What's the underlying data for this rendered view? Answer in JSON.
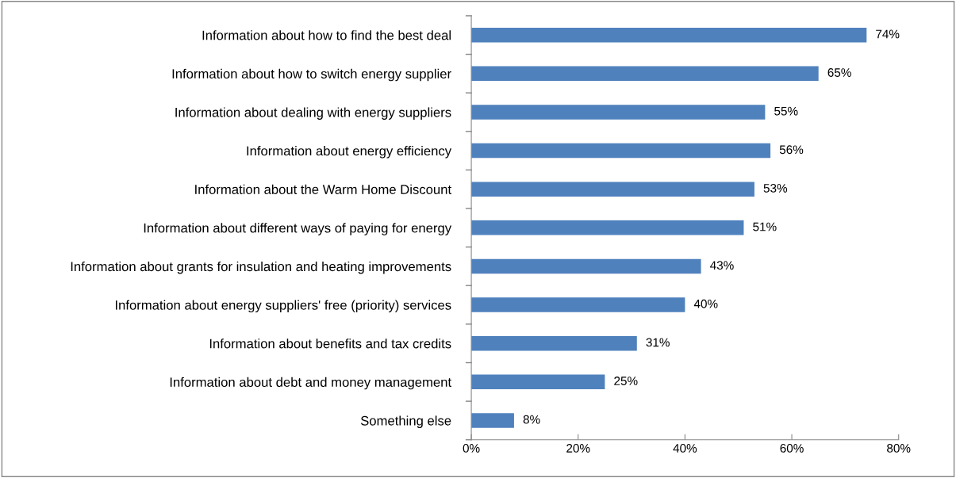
{
  "chart_data": {
    "type": "bar",
    "orientation": "horizontal",
    "categories": [
      "Information about how to find the best deal",
      "Information about how to switch energy supplier",
      "Information about dealing with energy suppliers",
      "Information about energy efficiency",
      "Information about the Warm Home Discount",
      "Information about different ways of paying for energy",
      "Information about grants for insulation and heating improvements",
      "Information about energy suppliers' free (priority) services",
      "Information about benefits and tax credits",
      "Information about debt and money management",
      "Something else"
    ],
    "values": [
      74,
      65,
      55,
      56,
      53,
      51,
      43,
      40,
      31,
      25,
      8
    ],
    "value_labels": [
      "74%",
      "65%",
      "55%",
      "56%",
      "53%",
      "51%",
      "43%",
      "40%",
      "31%",
      "25%",
      "8%"
    ],
    "color": "#4f81bd",
    "xlim": [
      0,
      80
    ],
    "xticks": [
      {
        "value": 0,
        "label": "0%"
      },
      {
        "value": 20,
        "label": "20%"
      },
      {
        "value": 40,
        "label": "40%"
      },
      {
        "value": 60,
        "label": "60%"
      },
      {
        "value": 80,
        "label": "80%"
      }
    ],
    "grid": false,
    "legend": false
  }
}
